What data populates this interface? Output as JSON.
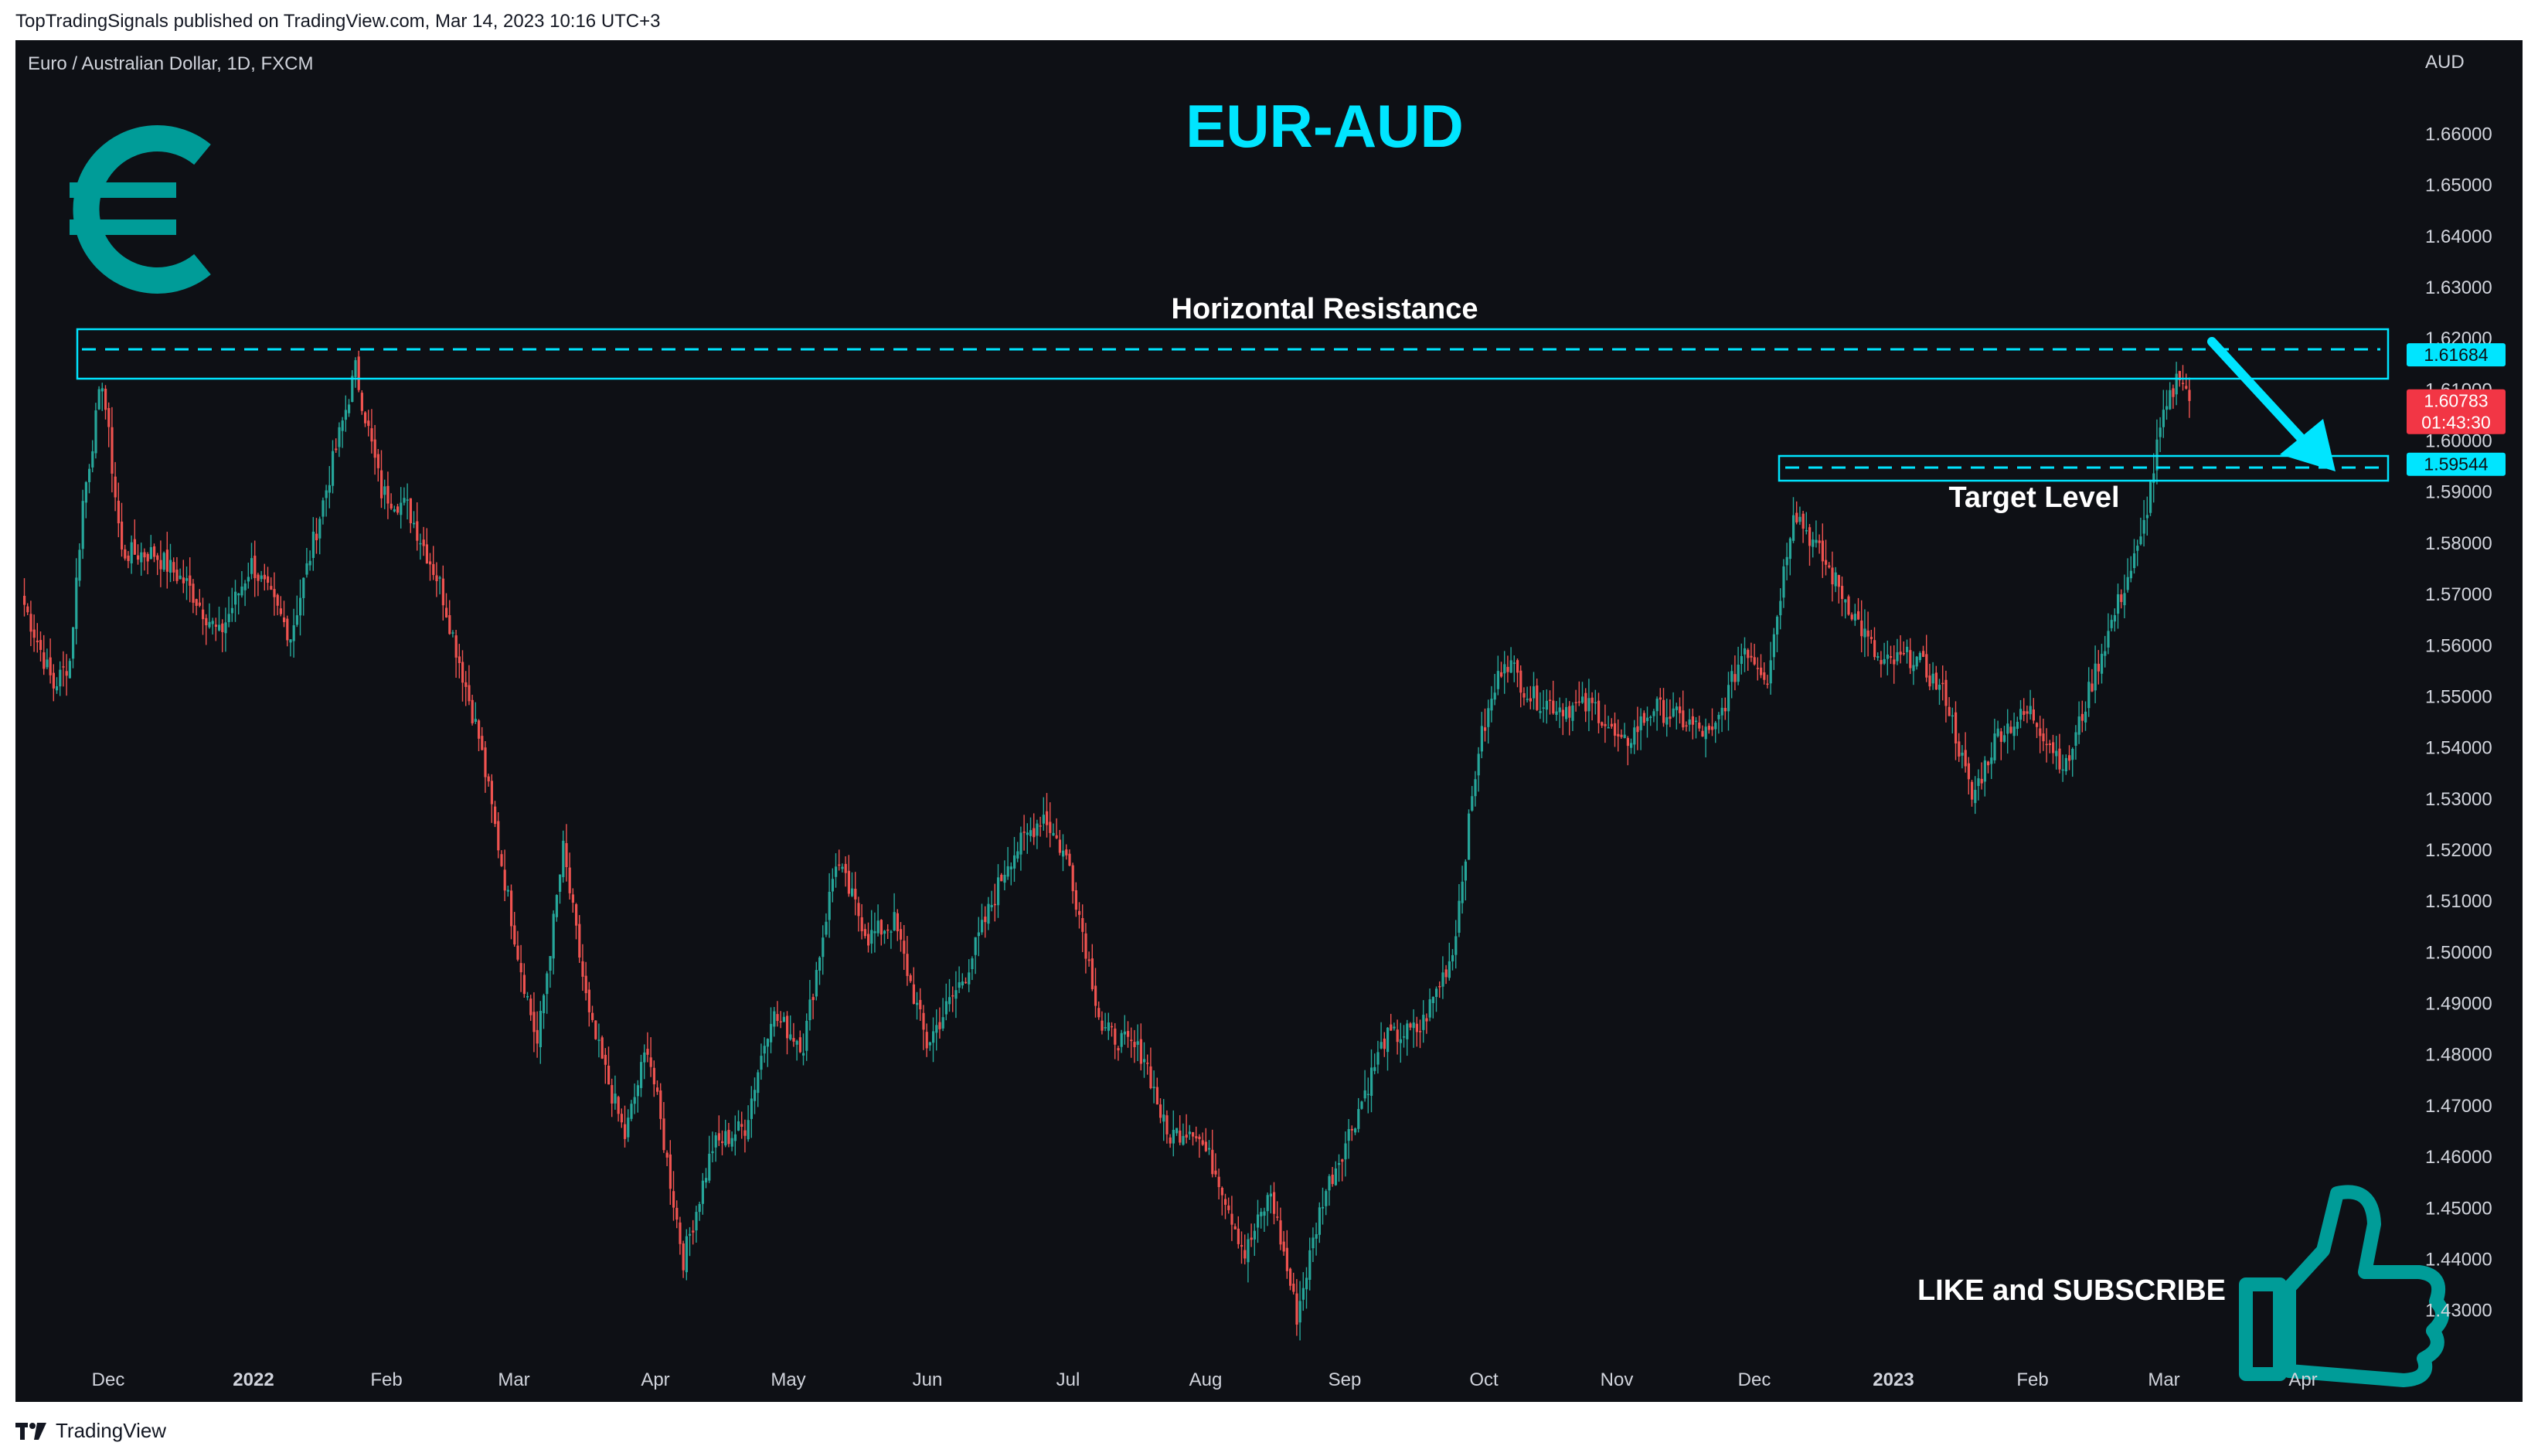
{
  "header": {
    "published": "TopTradingSignals published on TradingView.com, Mar 14, 2023 10:16 UTC+3"
  },
  "footer": {
    "brand": "TradingView"
  },
  "chart_data": {
    "type": "candlestick",
    "symbol_line": "Euro / Australian Dollar, 1D, FXCM",
    "title": "EUR-AUD",
    "currency_label": "AUD",
    "x_labels": [
      "Dec",
      "2022",
      "Feb",
      "Mar",
      "Apr",
      "May",
      "Jun",
      "Jul",
      "Aug",
      "Sep",
      "Oct",
      "Nov",
      "Dec",
      "2023",
      "Feb",
      "Mar",
      "Apr"
    ],
    "bold_x_labels": [
      "2022",
      "2023"
    ],
    "y_ticks": [
      "1.66000",
      "1.65000",
      "1.64000",
      "1.63000",
      "1.62000",
      "1.61000",
      "1.60000",
      "1.59000",
      "1.58000",
      "1.57000",
      "1.56000",
      "1.55000",
      "1.54000",
      "1.53000",
      "1.52000",
      "1.51000",
      "1.50000",
      "1.49000",
      "1.48000",
      "1.47000",
      "1.46000",
      "1.45000",
      "1.44000",
      "1.43000"
    ],
    "ylim": [
      1.423,
      1.672
    ],
    "up_color": "#26a69a",
    "down_color": "#ef5350",
    "accent_color": "#00e5ff",
    "price_path": [
      [
        0,
        1.568
      ],
      [
        9,
        1.552
      ],
      [
        14,
        1.557
      ],
      [
        18,
        1.588
      ],
      [
        24,
        1.612
      ],
      [
        30,
        1.578
      ],
      [
        40,
        1.578
      ],
      [
        50,
        1.572
      ],
      [
        60,
        1.562
      ],
      [
        70,
        1.576
      ],
      [
        82,
        1.562
      ],
      [
        92,
        1.588
      ],
      [
        102,
        1.614
      ],
      [
        110,
        1.59
      ],
      [
        118,
        1.587
      ],
      [
        128,
        1.572
      ],
      [
        140,
        1.542
      ],
      [
        152,
        1.5
      ],
      [
        158,
        1.482
      ],
      [
        166,
        1.52
      ],
      [
        174,
        1.487
      ],
      [
        185,
        1.464
      ],
      [
        192,
        1.482
      ],
      [
        203,
        1.44
      ],
      [
        212,
        1.462
      ],
      [
        222,
        1.466
      ],
      [
        230,
        1.488
      ],
      [
        240,
        1.482
      ],
      [
        250,
        1.518
      ],
      [
        260,
        1.503
      ],
      [
        268,
        1.506
      ],
      [
        278,
        1.482
      ],
      [
        290,
        1.496
      ],
      [
        303,
        1.518
      ],
      [
        314,
        1.527
      ],
      [
        322,
        1.517
      ],
      [
        332,
        1.485
      ],
      [
        345,
        1.48
      ],
      [
        352,
        1.464
      ],
      [
        360,
        1.466
      ],
      [
        368,
        1.456
      ],
      [
        376,
        1.441
      ],
      [
        384,
        1.453
      ],
      [
        392,
        1.429
      ],
      [
        400,
        1.452
      ],
      [
        409,
        1.466
      ],
      [
        419,
        1.483
      ],
      [
        430,
        1.485
      ],
      [
        440,
        1.5
      ],
      [
        448,
        1.54
      ],
      [
        456,
        1.558
      ],
      [
        464,
        1.55
      ],
      [
        473,
        1.548
      ],
      [
        484,
        1.548
      ],
      [
        492,
        1.54
      ],
      [
        502,
        1.548
      ],
      [
        512,
        1.545
      ],
      [
        520,
        1.542
      ],
      [
        530,
        1.56
      ],
      [
        537,
        1.554
      ],
      [
        545,
        1.587
      ],
      [
        553,
        1.578
      ],
      [
        562,
        1.568
      ],
      [
        572,
        1.556
      ],
      [
        582,
        1.558
      ],
      [
        592,
        1.55
      ],
      [
        600,
        1.53
      ],
      [
        608,
        1.543
      ],
      [
        618,
        1.547
      ],
      [
        629,
        1.536
      ],
      [
        638,
        1.555
      ],
      [
        646,
        1.57
      ],
      [
        652,
        1.58
      ],
      [
        658,
        1.602
      ],
      [
        664,
        1.614
      ],
      [
        667,
        1.6078
      ]
    ],
    "horizontal_resistance": {
      "label": "Horizontal Resistance",
      "level": 1.61684,
      "level_label": "1.61684",
      "zone": [
        1.6115,
        1.621
      ]
    },
    "target_level": {
      "label": "Target Level",
      "level": 1.59544,
      "level_label": "1.59544",
      "zone": [
        1.593,
        1.5975
      ]
    },
    "last_price": {
      "value": 1.60783,
      "label": "1.60783",
      "countdown": "01:43:30"
    },
    "promo": "LIKE and SUBSCRIBE",
    "icons": [
      "euro-icon",
      "thumbs-up-icon"
    ]
  }
}
